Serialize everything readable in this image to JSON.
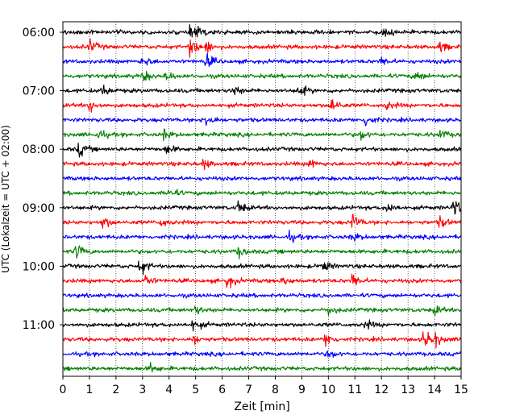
{
  "chart_data": {
    "type": "line",
    "title": "",
    "xlabel": "Zeit  [min]",
    "ylabel": "UTC (Lokalzeit = UTC + 02:00)",
    "xlim": [
      0,
      15
    ],
    "x_ticks": [
      0,
      1,
      2,
      3,
      4,
      5,
      6,
      7,
      8,
      9,
      10,
      11,
      12,
      13,
      14,
      15
    ],
    "y_tick_labels": [
      "06:00",
      "07:00",
      "08:00",
      "09:00",
      "10:00",
      "11:00"
    ],
    "y_tick_rows": [
      0,
      4,
      8,
      12,
      16,
      20
    ],
    "vertical_grid": "dotted",
    "trace_colors": [
      "#000000",
      "#ff0000",
      "#0000ff",
      "#008000"
    ],
    "trace_count": 24,
    "row_minutes": 15,
    "events": [
      [
        [
          4.8,
          1.6
        ],
        [
          5.1,
          1.0
        ],
        [
          12.1,
          1.0
        ]
      ],
      [
        [
          1.0,
          1.8
        ],
        [
          4.8,
          3.2
        ],
        [
          5.4,
          1.8
        ],
        [
          14.2,
          1.4
        ]
      ],
      [
        [
          3.0,
          1.6
        ],
        [
          5.4,
          2.0
        ],
        [
          12.0,
          1.2
        ]
      ],
      [
        [
          3.0,
          1.6
        ],
        [
          3.9,
          1.3
        ],
        [
          13.3,
          1.6
        ]
      ],
      [
        [
          1.5,
          1.5
        ],
        [
          6.4,
          1.7
        ],
        [
          8.9,
          1.8
        ]
      ],
      [
        [
          1.0,
          2.0
        ],
        [
          10.1,
          2.5
        ],
        [
          12.2,
          1.2
        ]
      ],
      [
        [
          5.4,
          2.2
        ],
        [
          11.4,
          1.8
        ]
      ],
      [
        [
          1.3,
          1.6
        ],
        [
          3.8,
          1.3
        ],
        [
          11.2,
          1.4
        ],
        [
          14.2,
          1.4
        ]
      ],
      [
        [
          0.6,
          2.2
        ],
        [
          3.9,
          1.4
        ]
      ],
      [
        [
          5.3,
          1.3
        ],
        [
          9.3,
          1.2
        ]
      ],
      [],
      [
        [
          4.0,
          1.4
        ]
      ],
      [
        [
          6.6,
          1.8
        ],
        [
          12.2,
          1.7
        ],
        [
          14.7,
          2.6
        ]
      ],
      [
        [
          1.5,
          1.8
        ],
        [
          3.7,
          1.2
        ],
        [
          10.9,
          2.4
        ],
        [
          14.2,
          1.6
        ]
      ],
      [
        [
          8.5,
          1.4
        ],
        [
          10.9,
          1.2
        ]
      ],
      [
        [
          0.5,
          2.2
        ],
        [
          6.6,
          1.4
        ]
      ],
      [
        [
          2.9,
          2.6
        ],
        [
          9.8,
          1.6
        ]
      ],
      [
        [
          3.1,
          1.6
        ],
        [
          6.2,
          2.0
        ],
        [
          8.3,
          1.3
        ],
        [
          10.9,
          2.2
        ]
      ],
      [],
      [
        [
          5.0,
          1.2
        ],
        [
          10.0,
          1.3
        ],
        [
          14.0,
          1.2
        ]
      ],
      [
        [
          4.9,
          1.8
        ],
        [
          11.4,
          1.2
        ]
      ],
      [
        [
          4.9,
          1.3
        ],
        [
          9.9,
          2.2
        ],
        [
          13.6,
          3.0
        ],
        [
          14.0,
          1.8
        ]
      ],
      [
        [
          10.0,
          1.2
        ]
      ],
      [
        [
          3.3,
          1.2
        ]
      ]
    ]
  }
}
